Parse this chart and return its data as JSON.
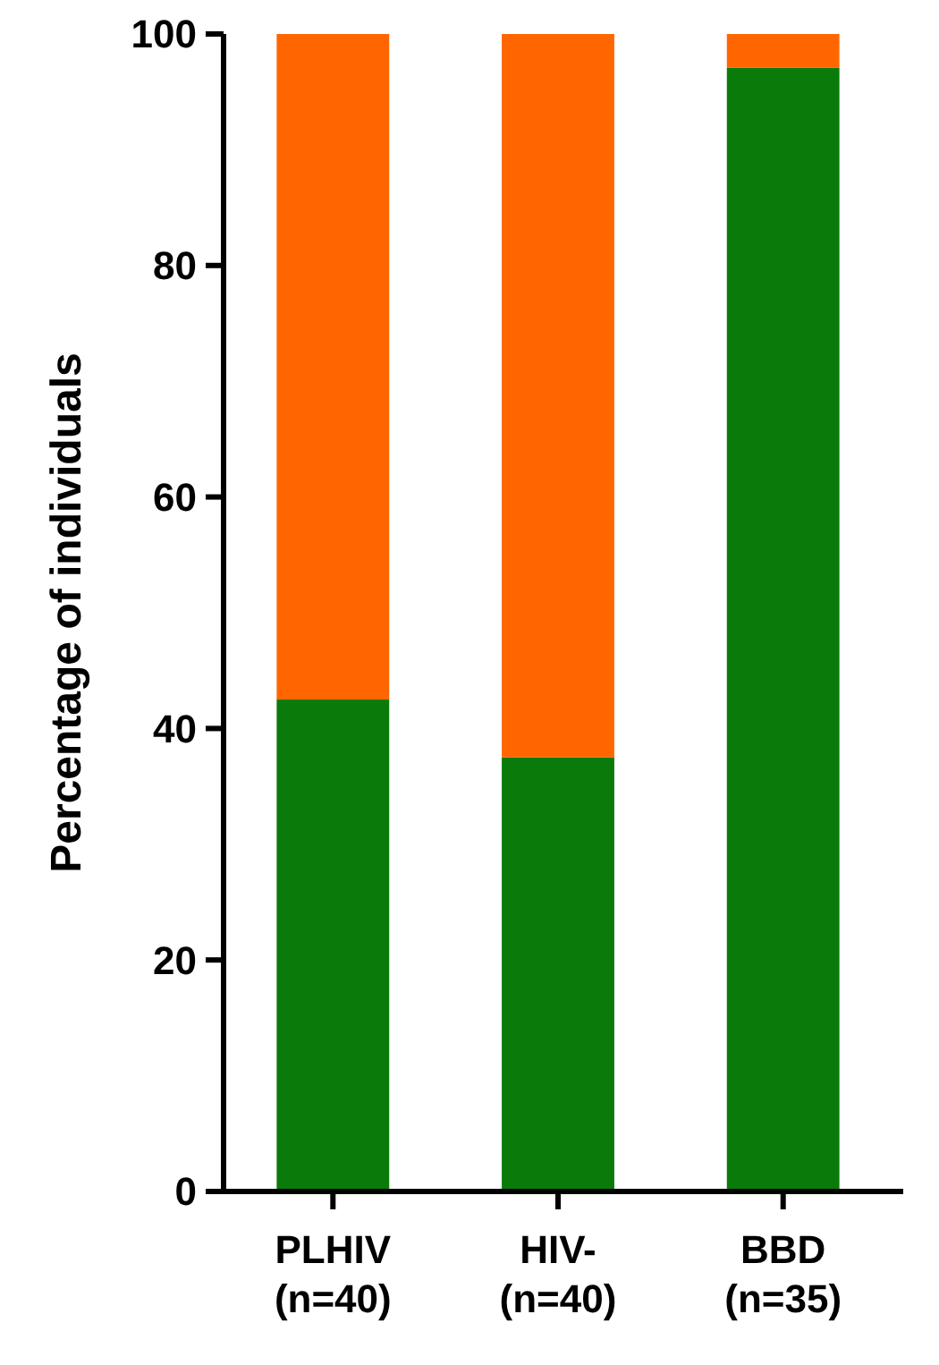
{
  "chart_data": {
    "type": "bar",
    "stacked": true,
    "ylabel": "Percentage of individuals",
    "categories": [
      "PLHIV\n(n=40)",
      "HIV-\n(n=40)",
      "BBD\n(n=35)"
    ],
    "series": [
      {
        "color": "#0a7a0a",
        "values": [
          42.5,
          37.5,
          97.1
        ]
      },
      {
        "color": "#ff6600",
        "values": [
          57.5,
          62.5,
          2.9
        ]
      }
    ],
    "ylim": [
      0,
      100
    ],
    "yticks": [
      0,
      20,
      40,
      60,
      80,
      100
    ],
    "grid": false
  }
}
